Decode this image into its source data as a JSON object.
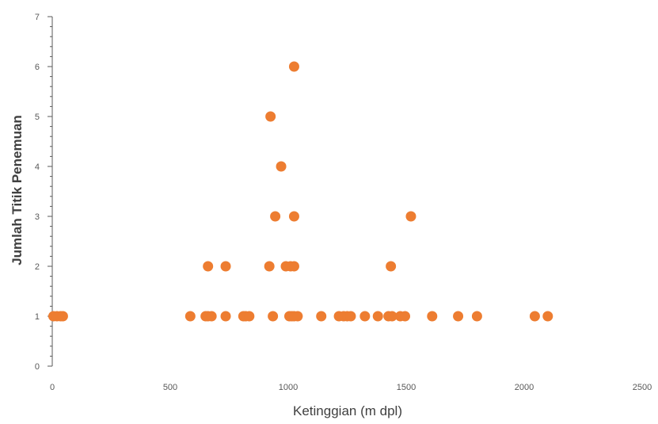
{
  "chart_data": {
    "type": "scatter",
    "title": "",
    "xlabel": "Ketinggian (m dpl)",
    "ylabel": "Jumlah Titik Penemuan",
    "xlim": [
      0,
      2500
    ],
    "ylim": [
      0,
      7
    ],
    "x_ticks": [
      0,
      500,
      1000,
      1500,
      2000,
      2500
    ],
    "y_ticks": [
      0,
      1,
      2,
      3,
      4,
      5,
      6,
      7
    ],
    "grid": false,
    "legend": "none",
    "marker_color": "#ED7D31",
    "series": [
      {
        "points": [
          {
            "x": 5,
            "y": 1
          },
          {
            "x": 20,
            "y": 1
          },
          {
            "x": 35,
            "y": 1
          },
          {
            "x": 45,
            "y": 1
          },
          {
            "x": 585,
            "y": 1
          },
          {
            "x": 650,
            "y": 1
          },
          {
            "x": 660,
            "y": 1
          },
          {
            "x": 675,
            "y": 1
          },
          {
            "x": 735,
            "y": 1
          },
          {
            "x": 810,
            "y": 1
          },
          {
            "x": 820,
            "y": 1
          },
          {
            "x": 835,
            "y": 1
          },
          {
            "x": 935,
            "y": 1
          },
          {
            "x": 1005,
            "y": 1
          },
          {
            "x": 1015,
            "y": 1
          },
          {
            "x": 1025,
            "y": 1
          },
          {
            "x": 1040,
            "y": 1
          },
          {
            "x": 1140,
            "y": 1
          },
          {
            "x": 1215,
            "y": 1
          },
          {
            "x": 1235,
            "y": 1
          },
          {
            "x": 1250,
            "y": 1
          },
          {
            "x": 1265,
            "y": 1
          },
          {
            "x": 1325,
            "y": 1
          },
          {
            "x": 1380,
            "y": 1
          },
          {
            "x": 1425,
            "y": 1
          },
          {
            "x": 1440,
            "y": 1
          },
          {
            "x": 1475,
            "y": 1
          },
          {
            "x": 1495,
            "y": 1
          },
          {
            "x": 1610,
            "y": 1
          },
          {
            "x": 1720,
            "y": 1
          },
          {
            "x": 1800,
            "y": 1
          },
          {
            "x": 2045,
            "y": 1
          },
          {
            "x": 2100,
            "y": 1
          },
          {
            "x": 660,
            "y": 2
          },
          {
            "x": 735,
            "y": 2
          },
          {
            "x": 920,
            "y": 2
          },
          {
            "x": 990,
            "y": 2
          },
          {
            "x": 1010,
            "y": 2
          },
          {
            "x": 1025,
            "y": 2
          },
          {
            "x": 1435,
            "y": 2
          },
          {
            "x": 945,
            "y": 3
          },
          {
            "x": 1025,
            "y": 3
          },
          {
            "x": 1520,
            "y": 3
          },
          {
            "x": 970,
            "y": 4
          },
          {
            "x": 925,
            "y": 5
          },
          {
            "x": 1025,
            "y": 6
          }
        ]
      }
    ]
  }
}
